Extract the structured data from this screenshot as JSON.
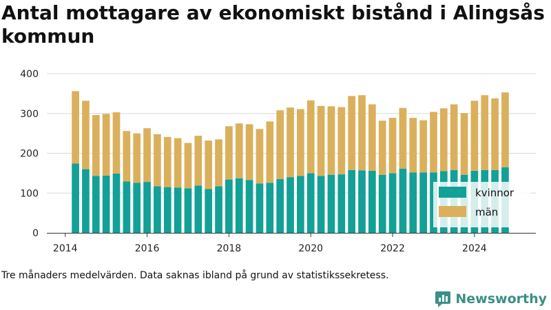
{
  "chart_data": {
    "type": "bar",
    "stacked": true,
    "title": "Antal mottagare av ekonomiskt bistånd i Alingsås kommun",
    "xlabel": "",
    "ylabel": "",
    "ylim": [
      0,
      400
    ],
    "yticks": [
      "0",
      "100",
      "200",
      "300",
      "400"
    ],
    "xticks": [
      "2014",
      "2016",
      "2018",
      "2020",
      "2022",
      "2024"
    ],
    "x_start_year": 2014,
    "x_range": [
      2013.55,
      2025.5
    ],
    "grid": true,
    "legend_position": "bottom-right",
    "series": [
      {
        "name": "kvinnor",
        "color": "#12a097",
        "values": [
          174,
          160,
          143,
          144,
          149,
          129,
          126,
          128,
          117,
          115,
          114,
          112,
          119,
          110,
          117,
          134,
          137,
          133,
          124,
          126,
          135,
          140,
          143,
          150,
          143,
          146,
          147,
          158,
          157,
          156,
          146,
          150,
          161,
          152,
          152,
          152,
          155,
          158,
          146,
          156,
          158,
          158,
          165
        ]
      },
      {
        "name": "män",
        "color": "#dbb05c",
        "values": [
          182,
          172,
          153,
          155,
          154,
          127,
          124,
          135,
          131,
          126,
          124,
          114,
          125,
          122,
          118,
          134,
          138,
          140,
          137,
          154,
          173,
          175,
          168,
          183,
          176,
          172,
          169,
          186,
          189,
          167,
          136,
          139,
          153,
          137,
          131,
          152,
          158,
          165,
          155,
          176,
          188,
          180,
          188
        ]
      }
    ],
    "x_quarters": [
      "2014-Q2",
      "2014-Q3",
      "2014-Q4",
      "2015-Q1",
      "2015-Q2",
      "2015-Q3",
      "2015-Q4",
      "2016-Q1",
      "2016-Q2",
      "2016-Q3",
      "2016-Q4",
      "2017-Q1",
      "2017-Q2",
      "2017-Q3",
      "2017-Q4",
      "2018-Q1",
      "2018-Q2",
      "2018-Q3",
      "2018-Q4",
      "2019-Q1",
      "2019-Q2",
      "2019-Q3",
      "2019-Q4",
      "2020-Q1",
      "2020-Q2",
      "2020-Q3",
      "2020-Q4",
      "2021-Q1",
      "2021-Q2",
      "2021-Q3",
      "2021-Q4",
      "2022-Q1",
      "2022-Q2",
      "2022-Q3",
      "2022-Q4",
      "2023-Q1",
      "2023-Q2",
      "2023-Q3",
      "2023-Q4",
      "2024-Q1",
      "2024-Q2",
      "2024-Q3",
      "2024-Q4"
    ]
  },
  "caption": "Tre månaders medelvärden. Data saknas ibland på grund av statistikssekretess.",
  "brand": {
    "name": "Newsworthy",
    "icon": "newsworthy-logo-icon",
    "color": "#3a8f86"
  }
}
